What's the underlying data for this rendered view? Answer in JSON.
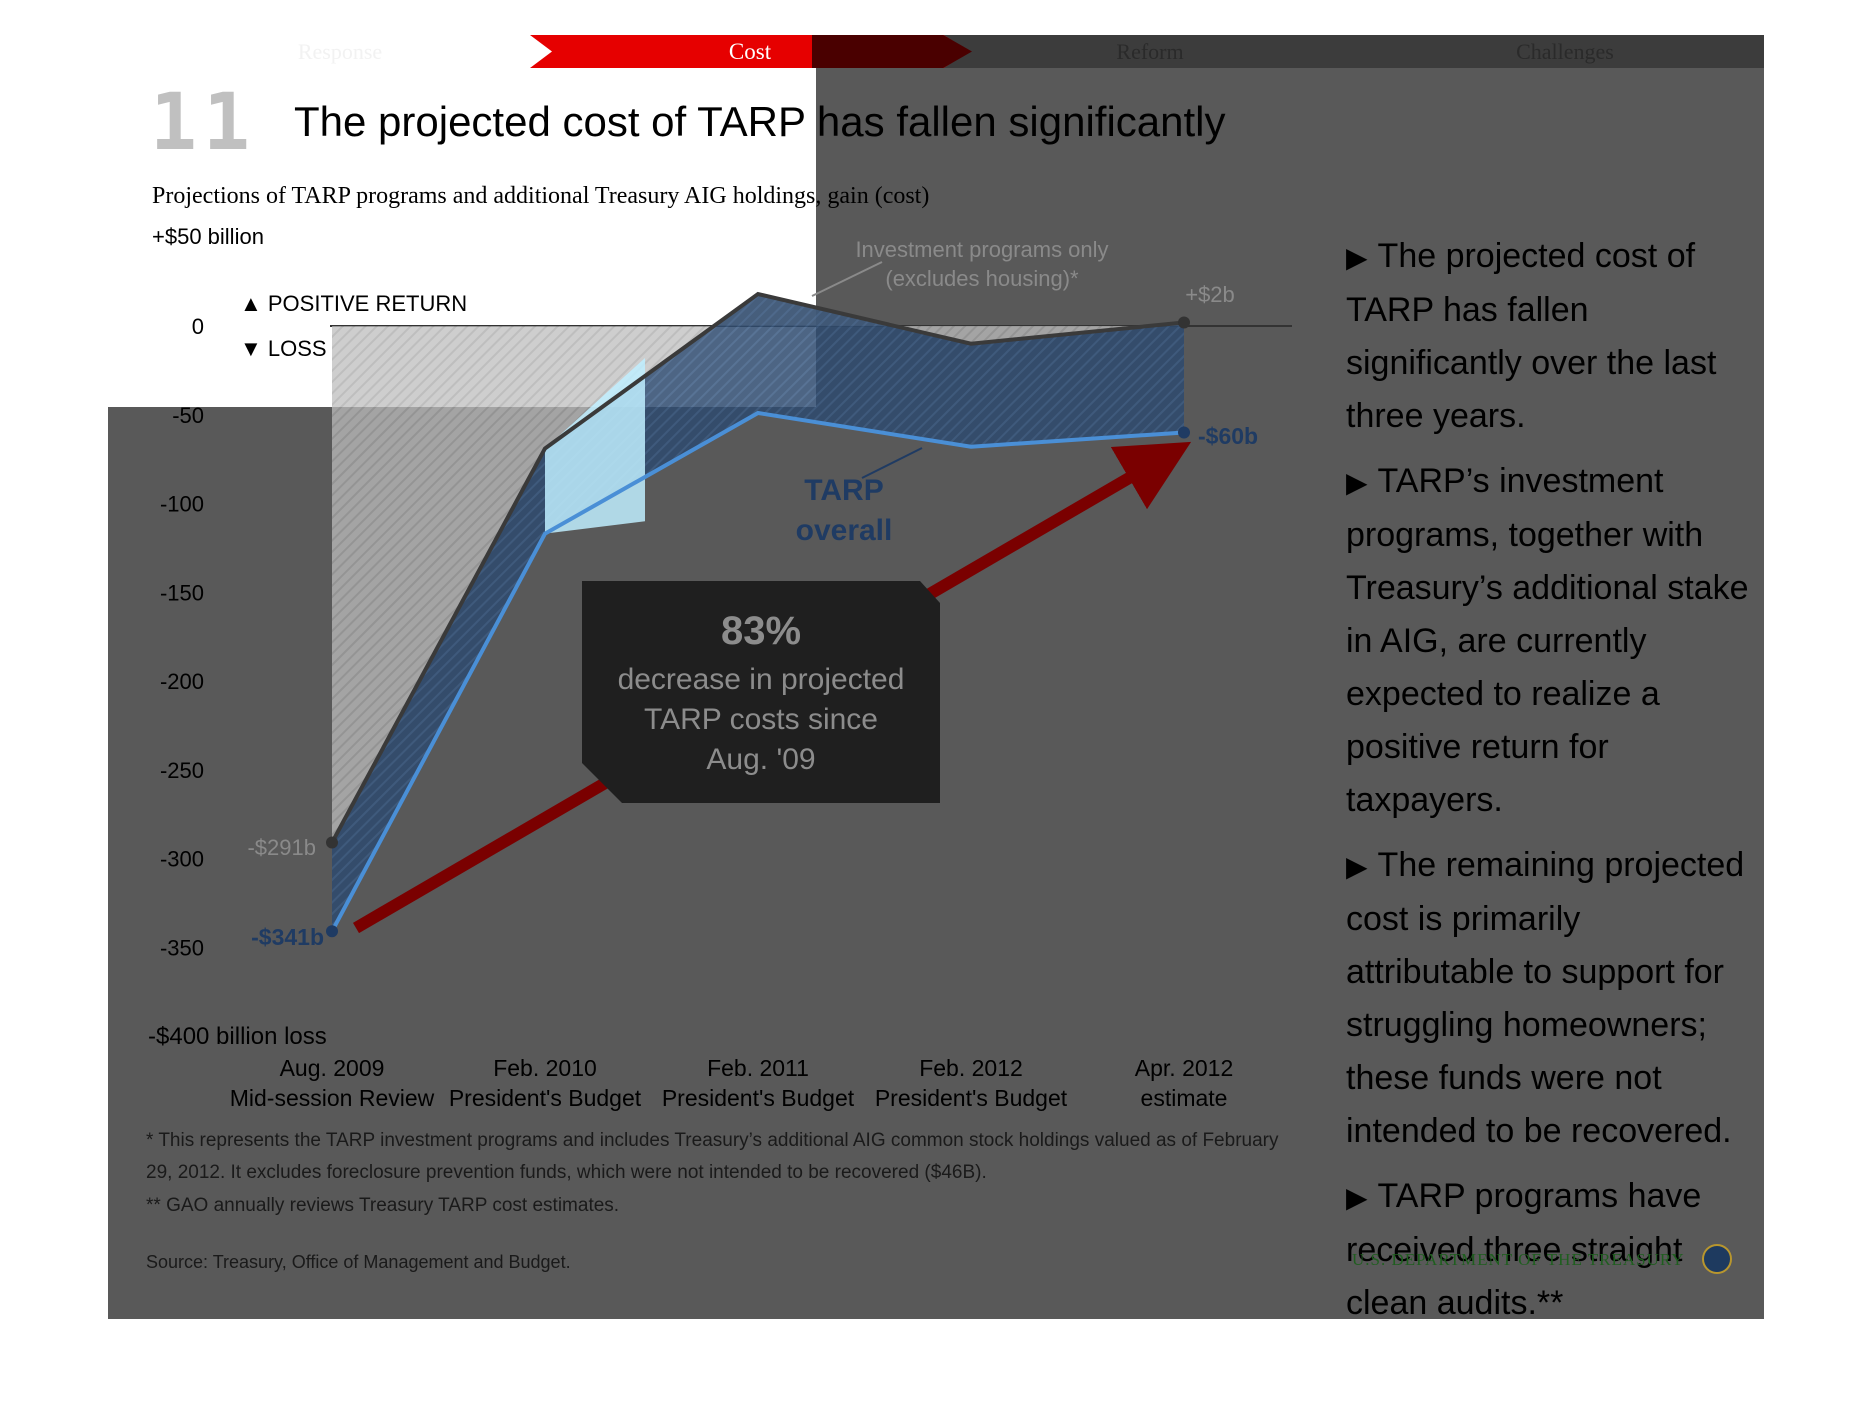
{
  "nav": {
    "tabs": [
      {
        "label": "Response"
      },
      {
        "label": "Cost"
      },
      {
        "label": "Reform"
      },
      {
        "label": "Challenges"
      }
    ],
    "active": "Cost"
  },
  "slide": {
    "number": "11",
    "title": "The projected cost of TARP has fallen significantly"
  },
  "callout": {
    "percent": "83%",
    "text": "decrease in projected TARP costs since Aug. '09"
  },
  "bullets": [
    "The projected cost of TARP has fallen significantly over the last three years.",
    "TARP’s investment programs, together with Treasury’s additional stake in AIG,  are currently expected to realize a positive return for taxpayers.",
    "The remaining projected cost is primarily attributable to support for struggling homeowners; these funds were not intended to be recovered.",
    "TARP programs have received three straight clean audits.**"
  ],
  "footnotes": {
    "note1_line1": "* This represents the TARP investment programs and includes Treasury’s additional AIG common stock holdings valued as of February",
    "note1_line2": "29, 2012. It excludes foreclosure prevention funds, which were not intended to be recovered ($46B).",
    "note2": "** GAO annually reviews Treasury TARP cost estimates.",
    "source": "Source: Treasury, Office of Management and Budget."
  },
  "brand": "U.S. DEPARTMENT OF THE TREASURY",
  "colors": {
    "tarp_overall_line": "#4a8fd6",
    "investment_line": "#3a3a3a",
    "nav_active": "#e60000",
    "arrow": "#7a0000",
    "tarp_label": "#1f3b63"
  },
  "chart_data": {
    "type": "line",
    "title": "Projections of TARP programs and additional Treasury AIG holdings, gain (cost)",
    "categories": [
      "Aug. 2009|Mid-session Review",
      "Feb. 2010|President's Budget",
      "Feb. 2011|President's Budget",
      "Feb. 2012|President's Budget",
      "Apr. 2012|estimate"
    ],
    "series": [
      {
        "name": "Investment programs only (excludes housing)*",
        "values": [
          -291,
          -69,
          18,
          -10,
          2
        ]
      },
      {
        "name": "TARP overall",
        "values": [
          -341,
          -117,
          -49,
          -68,
          -60
        ]
      }
    ],
    "ylim": [
      -400,
      50
    ],
    "yticks": [
      0,
      -50,
      -100,
      -150,
      -200,
      -250,
      -300,
      -350
    ],
    "ytick_labels": [
      "0",
      "-50",
      "-100",
      "-150",
      "-200",
      "-250",
      "-300",
      "-350"
    ],
    "y_top_label": "+$50 billion",
    "y_bottom_label": "-$400 billion loss",
    "positive_label": "POSITIVE RETURN",
    "negative_label": "LOSS",
    "annotations": {
      "inv_start": "-$291b",
      "inv_end": "+$2b",
      "tarp_start": "-$341b",
      "tarp_end": "-$60b",
      "tarp_label_1": "TARP",
      "tarp_label_2": "overall",
      "inv_label_1": "Investment programs only",
      "inv_label_2": "(excludes housing)*"
    }
  }
}
